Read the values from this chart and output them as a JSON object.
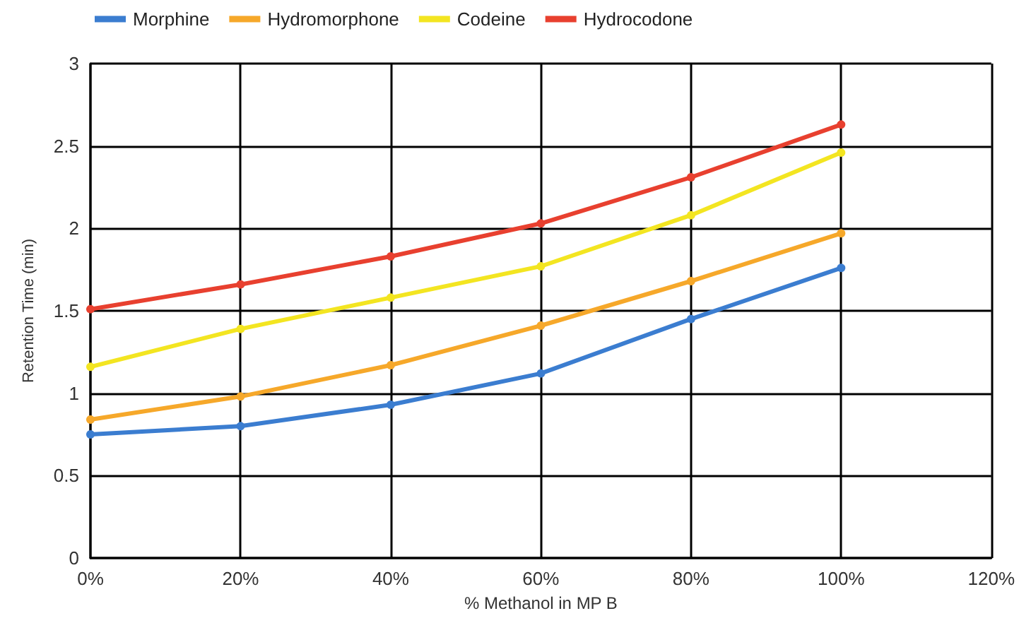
{
  "chart_data": {
    "type": "line",
    "xlabel": "% Methanol in MP B",
    "ylabel": "Retention Time (min)",
    "x": [
      0,
      20,
      40,
      60,
      80,
      100
    ],
    "series": [
      {
        "name": "Morphine",
        "color": "#3b7dd0",
        "values": [
          0.75,
          0.8,
          0.93,
          1.12,
          1.45,
          1.76
        ]
      },
      {
        "name": "Hydromorphone",
        "color": "#f6a82a",
        "values": [
          0.84,
          0.98,
          1.17,
          1.41,
          1.68,
          1.97
        ]
      },
      {
        "name": "Codeine",
        "color": "#f3e521",
        "values": [
          1.16,
          1.39,
          1.58,
          1.77,
          2.08,
          2.46
        ]
      },
      {
        "name": "Hydrocodone",
        "color": "#e8402f",
        "values": [
          1.51,
          1.66,
          1.83,
          2.03,
          2.31,
          2.63
        ]
      }
    ],
    "xlim": [
      0,
      120
    ],
    "xticks": [
      {
        "value": 0,
        "label": "0%"
      },
      {
        "value": 20,
        "label": "20%"
      },
      {
        "value": 40,
        "label": "40%"
      },
      {
        "value": 60,
        "label": "60%"
      },
      {
        "value": 80,
        "label": "80%"
      },
      {
        "value": 100,
        "label": "100%"
      },
      {
        "value": 120,
        "label": "120%"
      }
    ],
    "ylim": [
      0,
      3
    ],
    "yticks": [
      0,
      0.5,
      1,
      1.5,
      2,
      2.5,
      3
    ],
    "grid": true,
    "legend": "top",
    "marker": "circle",
    "line_style": "solid"
  }
}
